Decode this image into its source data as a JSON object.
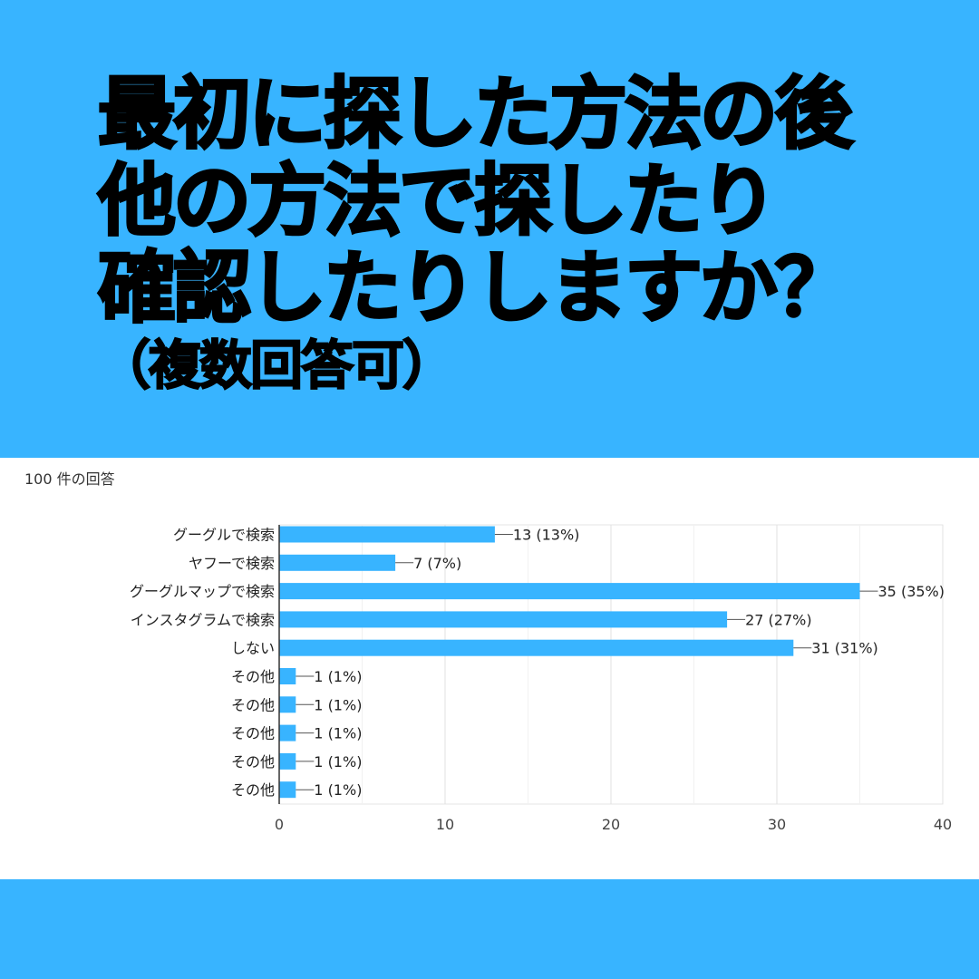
{
  "title": {
    "line1": "最初に探した方法の後",
    "line2": "他の方法で探したり",
    "line3": "確認したりしますか？",
    "line4": "（複数回答可）"
  },
  "response_count": "100 件の回答",
  "colors": {
    "background": "#38b4ff",
    "bar": "#38b4ff",
    "card": "#ffffff"
  },
  "chart_data": {
    "type": "bar",
    "orientation": "horizontal",
    "categories": [
      "グーグルで検索",
      "ヤフーで検索",
      "グーグルマップで検索",
      "インスタグラムで検索",
      "しない",
      "その他",
      "その他",
      "その他",
      "その他",
      "その他"
    ],
    "values": [
      13,
      7,
      35,
      27,
      31,
      1,
      1,
      1,
      1,
      1
    ],
    "data_labels": [
      "13 (13%)",
      "7 (7%)",
      "35 (35%)",
      "27 (27%)",
      "31 (31%)",
      "1 (1%)",
      "1 (1%)",
      "1 (1%)",
      "1 (1%)",
      "1 (1%)"
    ],
    "xlim": [
      0,
      40
    ],
    "xticks": [
      0,
      10,
      20,
      30,
      40
    ],
    "grid": true,
    "legend": "none"
  }
}
